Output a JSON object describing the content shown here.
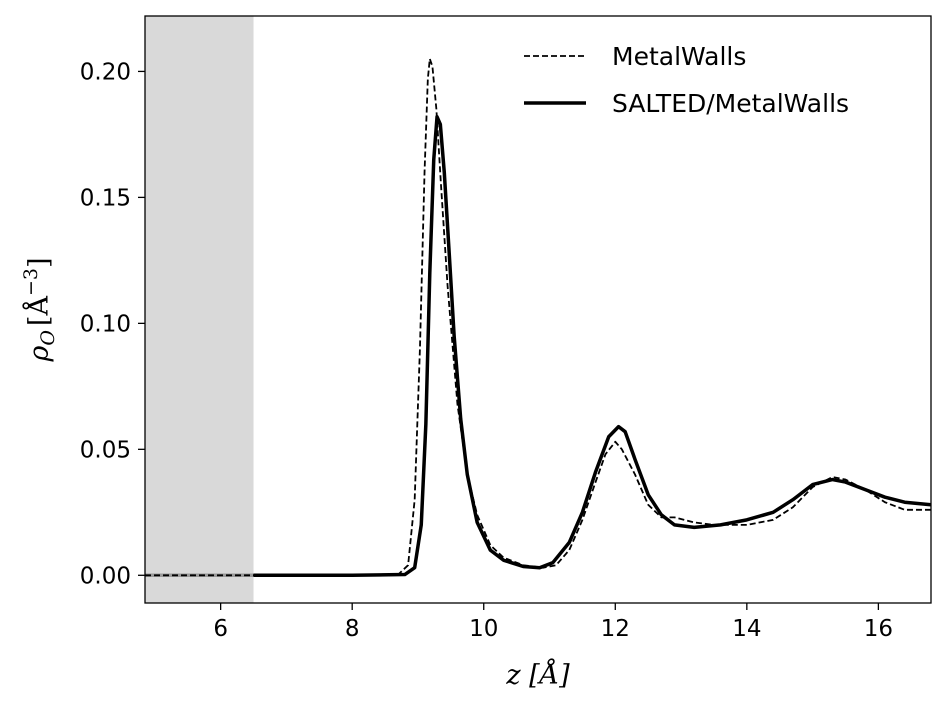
{
  "chart_data": {
    "type": "line",
    "xlabel": "z [Å]",
    "ylabel_main": "ρ",
    "ylabel_sub": "O",
    "ylabel_unit": "[Å",
    "ylabel_exp": "−3",
    "ylabel_close": "]",
    "xlim": [
      4.85,
      16.8
    ],
    "ylim": [
      -0.011,
      0.222
    ],
    "xticks": [
      6,
      8,
      10,
      12,
      14,
      16
    ],
    "xtick_labels": [
      "6",
      "8",
      "10",
      "12",
      "14",
      "16"
    ],
    "yticks": [
      0.0,
      0.05,
      0.1,
      0.15,
      0.2
    ],
    "ytick_labels": [
      "0.00",
      "0.05",
      "0.10",
      "0.15",
      "0.20"
    ],
    "shaded_region": {
      "x_range": [
        4.85,
        6.5
      ],
      "color": "#d9d9d9"
    },
    "legend_position": "top-right",
    "series": [
      {
        "name": "MetalWalls",
        "style": "dashed",
        "color": "#000000",
        "points": [
          [
            4.85,
            0.0
          ],
          [
            6.5,
            0.0
          ],
          [
            8.0,
            0.0
          ],
          [
            8.7,
            0.0003
          ],
          [
            8.85,
            0.004
          ],
          [
            8.95,
            0.03
          ],
          [
            9.03,
            0.09
          ],
          [
            9.1,
            0.16
          ],
          [
            9.15,
            0.197
          ],
          [
            9.18,
            0.205
          ],
          [
            9.22,
            0.202
          ],
          [
            9.28,
            0.185
          ],
          [
            9.35,
            0.155
          ],
          [
            9.45,
            0.115
          ],
          [
            9.6,
            0.068
          ],
          [
            9.75,
            0.04
          ],
          [
            9.9,
            0.024
          ],
          [
            10.1,
            0.012
          ],
          [
            10.3,
            0.007
          ],
          [
            10.6,
            0.004
          ],
          [
            10.9,
            0.003
          ],
          [
            11.1,
            0.004
          ],
          [
            11.3,
            0.01
          ],
          [
            11.5,
            0.022
          ],
          [
            11.7,
            0.037
          ],
          [
            11.85,
            0.048
          ],
          [
            12.0,
            0.053
          ],
          [
            12.1,
            0.05
          ],
          [
            12.3,
            0.04
          ],
          [
            12.5,
            0.028
          ],
          [
            12.7,
            0.023
          ],
          [
            12.9,
            0.023
          ],
          [
            13.2,
            0.021
          ],
          [
            13.5,
            0.02
          ],
          [
            14.0,
            0.02
          ],
          [
            14.4,
            0.022
          ],
          [
            14.7,
            0.027
          ],
          [
            15.0,
            0.035
          ],
          [
            15.3,
            0.039
          ],
          [
            15.5,
            0.038
          ],
          [
            15.8,
            0.034
          ],
          [
            16.1,
            0.029
          ],
          [
            16.4,
            0.026
          ],
          [
            16.8,
            0.026
          ]
        ]
      },
      {
        "name": "SALTED/MetalWalls",
        "style": "solid",
        "color": "#000000",
        "points": [
          [
            6.5,
            0.0
          ],
          [
            8.0,
            0.0
          ],
          [
            8.8,
            0.0003
          ],
          [
            8.95,
            0.003
          ],
          [
            9.05,
            0.02
          ],
          [
            9.12,
            0.06
          ],
          [
            9.18,
            0.12
          ],
          [
            9.24,
            0.165
          ],
          [
            9.29,
            0.182
          ],
          [
            9.34,
            0.179
          ],
          [
            9.4,
            0.16
          ],
          [
            9.47,
            0.13
          ],
          [
            9.55,
            0.095
          ],
          [
            9.65,
            0.062
          ],
          [
            9.75,
            0.04
          ],
          [
            9.9,
            0.021
          ],
          [
            10.1,
            0.01
          ],
          [
            10.3,
            0.006
          ],
          [
            10.6,
            0.0035
          ],
          [
            10.85,
            0.003
          ],
          [
            11.05,
            0.005
          ],
          [
            11.3,
            0.013
          ],
          [
            11.5,
            0.025
          ],
          [
            11.7,
            0.041
          ],
          [
            11.9,
            0.055
          ],
          [
            12.05,
            0.059
          ],
          [
            12.15,
            0.057
          ],
          [
            12.3,
            0.046
          ],
          [
            12.5,
            0.032
          ],
          [
            12.7,
            0.024
          ],
          [
            12.9,
            0.02
          ],
          [
            13.2,
            0.019
          ],
          [
            13.6,
            0.02
          ],
          [
            14.0,
            0.022
          ],
          [
            14.4,
            0.025
          ],
          [
            14.7,
            0.03
          ],
          [
            15.0,
            0.036
          ],
          [
            15.3,
            0.038
          ],
          [
            15.5,
            0.037
          ],
          [
            15.8,
            0.034
          ],
          [
            16.1,
            0.031
          ],
          [
            16.4,
            0.029
          ],
          [
            16.8,
            0.028
          ]
        ]
      }
    ]
  }
}
